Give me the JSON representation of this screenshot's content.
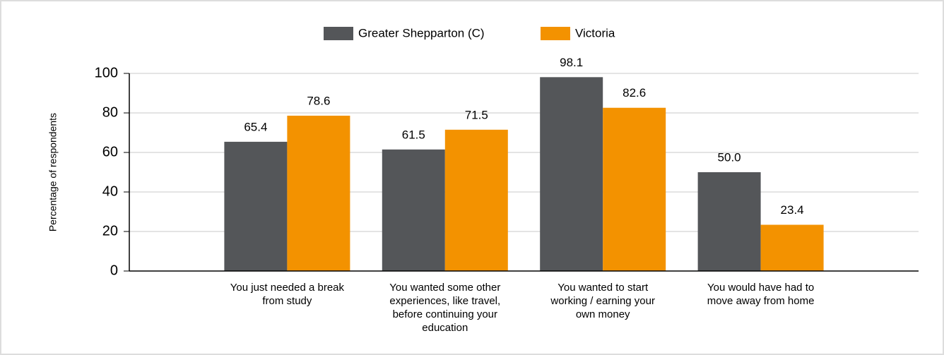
{
  "chart_data": {
    "type": "bar",
    "y_label": "Percentage of respondents",
    "categories": [
      "You just needed a break from study",
      "You wanted some other experiences, like travel, before continuing your education",
      "You wanted to start working / earning your own money",
      "You would have had to move away from home"
    ],
    "series": [
      {
        "name": "Greater Shepparton (C)",
        "color": "#545659",
        "values": [
          65.4,
          61.5,
          98.1,
          50
        ],
        "value_labels": [
          "65.4",
          "61.5",
          "98.1",
          "50.0"
        ]
      },
      {
        "name": "Victoria",
        "color": "#f39200",
        "values": [
          78.6,
          71.5,
          82.6,
          23.4
        ],
        "value_labels": [
          "78.6",
          "71.5",
          "82.6",
          "23.4"
        ]
      }
    ],
    "ylim": [
      0,
      100
    ],
    "yticks": [
      0,
      20,
      40,
      60,
      80,
      100
    ],
    "grid": true,
    "legend": "top"
  }
}
